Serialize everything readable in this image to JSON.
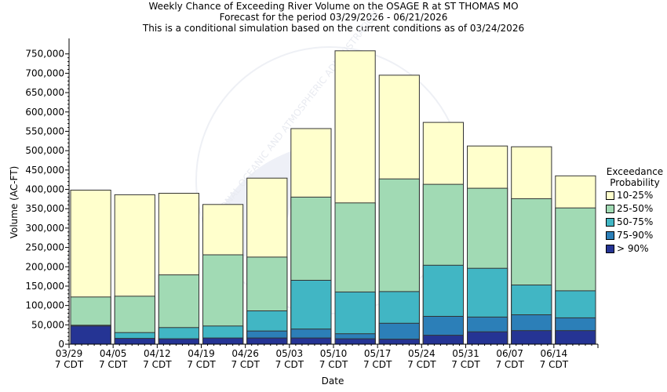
{
  "chart_data": {
    "type": "bar",
    "stacked": true,
    "title": [
      "Weekly Chance of Exceeding River Volume on the OSAGE R at ST THOMAS MO",
      "Forecast for the period 03/29/2026 - 06/21/2026",
      "This is a conditional simulation based on the current conditions as of 03/24/2026"
    ],
    "xlabel": "Date",
    "ylabel": "Volume (AC-FT)",
    "ylim": [
      0,
      790000
    ],
    "yticks": [
      0,
      50000,
      100000,
      150000,
      200000,
      250000,
      300000,
      350000,
      400000,
      450000,
      500000,
      550000,
      600000,
      650000,
      700000,
      750000
    ],
    "ytick_labels": [
      "0",
      "50,000",
      "100,000",
      "150,000",
      "200,000",
      "250,000",
      "300,000",
      "350,000",
      "400,000",
      "450,000",
      "500,000",
      "550,000",
      "600,000",
      "650,000",
      "700,000",
      "750,000"
    ],
    "xtick_labels": [
      [
        "03/29",
        "7 CDT"
      ],
      [
        "04/05",
        "7 CDT"
      ],
      [
        "04/12",
        "7 CDT"
      ],
      [
        "04/19",
        "7 CDT"
      ],
      [
        "04/26",
        "7 CDT"
      ],
      [
        "05/03",
        "7 CDT"
      ],
      [
        "05/10",
        "7 CDT"
      ],
      [
        "05/17",
        "7 CDT"
      ],
      [
        "05/24",
        "7 CDT"
      ],
      [
        "05/31",
        "7 CDT"
      ],
      [
        "06/07",
        "7 CDT"
      ],
      [
        "06/14",
        "7 CDT"
      ]
    ],
    "categories": [
      "03/29",
      "04/05",
      "04/12",
      "04/19",
      "04/26",
      "05/03",
      "05/10",
      "05/17",
      "05/24",
      "05/31",
      "06/07",
      "06/14"
    ],
    "legend_title": [
      "Exceedance",
      "Probability"
    ],
    "legend_position": "right",
    "grid": false,
    "series": [
      {
        "name": "10-25%",
        "color": "#ffffcc",
        "tops": [
          398000,
          386000,
          390000,
          361000,
          429000,
          557000,
          758000,
          695000,
          573000,
          512000,
          510000,
          435000
        ]
      },
      {
        "name": "25-50%",
        "color": "#a1dab4",
        "tops": [
          122000,
          124000,
          179000,
          231000,
          225000,
          380000,
          365000,
          427000,
          413000,
          403000,
          376000,
          352000
        ]
      },
      {
        "name": "50-75%",
        "color": "#41b6c4",
        "tops": [
          0,
          30000,
          43000,
          47000,
          86000,
          165000,
          135000,
          136000,
          204000,
          196000,
          153000,
          138000
        ]
      },
      {
        "name": "75-90%",
        "color": "#2c7fb8",
        "tops": [
          49000,
          0,
          0,
          0,
          34000,
          39000,
          27000,
          54000,
          72000,
          70000,
          76000,
          68000
        ]
      },
      {
        "name": "> 90%",
        "color": "#253494",
        "tops": [
          47000,
          15000,
          14000,
          16000,
          16000,
          16000,
          14000,
          13000,
          23000,
          32000,
          35000,
          35000
        ]
      }
    ]
  },
  "watermark": "NATIONAL OCEANIC AND ATMOSPHERIC ADMINISTRATION"
}
